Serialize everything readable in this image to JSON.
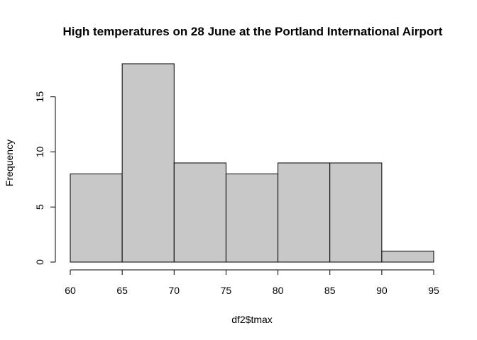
{
  "chart_data": {
    "type": "bar",
    "subtype": "histogram",
    "title": "High temperatures on 28 June at the Portland International Airport",
    "xlabel": "df2$tmax",
    "ylabel": "Frequency",
    "bins": [
      {
        "from": 60,
        "to": 65,
        "count": 8
      },
      {
        "from": 65,
        "to": 70,
        "count": 18
      },
      {
        "from": 70,
        "to": 75,
        "count": 9
      },
      {
        "from": 75,
        "to": 80,
        "count": 8
      },
      {
        "from": 80,
        "to": 85,
        "count": 9
      },
      {
        "from": 85,
        "to": 90,
        "count": 9
      },
      {
        "from": 90,
        "to": 95,
        "count": 1
      }
    ],
    "xlim": [
      60,
      95
    ],
    "ylim": [
      0,
      18
    ],
    "x_ticks": [
      60,
      65,
      70,
      75,
      80,
      85,
      90,
      95
    ],
    "y_ticks": [
      0,
      5,
      10,
      15
    ],
    "bar_color": "#c8c8c8",
    "grid": false,
    "legend": "none"
  }
}
